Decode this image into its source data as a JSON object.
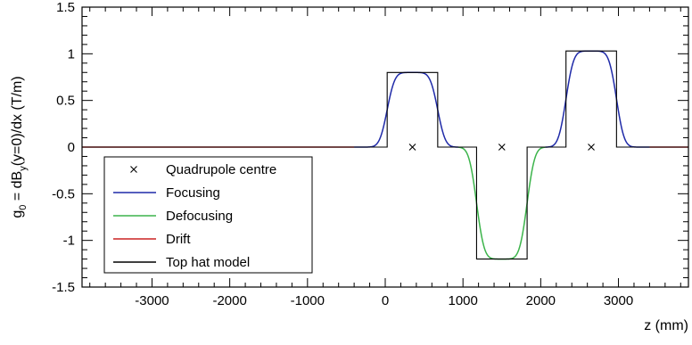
{
  "chart_data": {
    "type": "line",
    "title": "",
    "xlabel": "z (mm)",
    "ylabel_parts": {
      "main": "g",
      "sub0": "0",
      "mid": " = dB",
      "sub1": "y",
      "rest": "(y=0)/dx  (T/m)"
    },
    "xlim": [
      -3900,
      3900
    ],
    "ylim": [
      -1.5,
      1.5
    ],
    "xticks": [
      -3000,
      -2000,
      -1000,
      0,
      1000,
      2000,
      3000
    ],
    "xtick_labels": [
      "-3000",
      "-2000",
      "-1000",
      "0",
      "1000",
      "2000",
      "3000"
    ],
    "yticks": [
      -1.5,
      -1,
      -0.5,
      0,
      0.5,
      1,
      1.5
    ],
    "ytick_labels": [
      "-1.5",
      "-1",
      "-0.5",
      "0",
      "0.5",
      "1",
      "1.5"
    ],
    "grid": false,
    "legend_position": "bottom-left",
    "legend": [
      {
        "key": "centre",
        "label": "Quadrupole centre",
        "color": "#000000",
        "marker": "x"
      },
      {
        "key": "focusing",
        "label": "Focusing",
        "color": "#1f2aa8",
        "marker": "line"
      },
      {
        "key": "defocusing",
        "label": "Defocusing",
        "color": "#3cb44b",
        "marker": "line"
      },
      {
        "key": "drift",
        "label": "Drift",
        "color": "#cc2222",
        "marker": "line"
      },
      {
        "key": "tophat",
        "label": "Top hat model",
        "color": "#000000",
        "marker": "line"
      }
    ],
    "quadrupoles": [
      {
        "centre": 350,
        "start": 25,
        "end": 675,
        "gradient": 0.8,
        "type": "focusing"
      },
      {
        "centre": 1500,
        "start": 1175,
        "end": 1825,
        "gradient": -1.2,
        "type": "defocusing"
      },
      {
        "centre": 2650,
        "start": 2325,
        "end": 2975,
        "gradient": 1.03,
        "type": "focusing"
      }
    ],
    "centre_markers": [
      {
        "x": 350,
        "y": 0
      },
      {
        "x": 1500,
        "y": 0
      },
      {
        "x": 2650,
        "y": 0
      }
    ],
    "drift_regions": [
      [
        -3900,
        -400
      ],
      [
        3400,
        3900
      ]
    ],
    "fringe_width_mm": 110
  }
}
